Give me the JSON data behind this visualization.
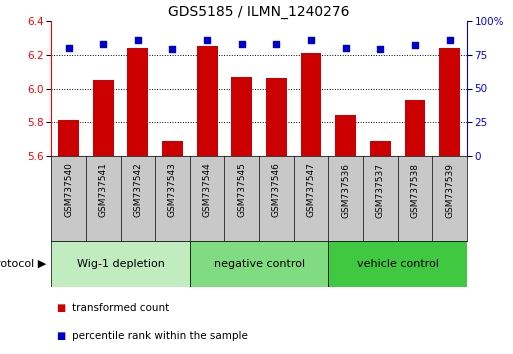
{
  "title": "GDS5185 / ILMN_1240276",
  "samples": [
    "GSM737540",
    "GSM737541",
    "GSM737542",
    "GSM737543",
    "GSM737544",
    "GSM737545",
    "GSM737546",
    "GSM737547",
    "GSM737536",
    "GSM737537",
    "GSM737538",
    "GSM737539"
  ],
  "red_values": [
    5.81,
    6.05,
    6.24,
    5.69,
    6.25,
    6.07,
    6.06,
    6.21,
    5.84,
    5.69,
    5.93,
    6.24
  ],
  "blue_values": [
    80,
    83,
    86,
    79,
    86,
    83,
    83,
    86,
    80,
    79,
    82,
    86
  ],
  "ylim_left": [
    5.6,
    6.4
  ],
  "ylim_right": [
    0,
    100
  ],
  "yticks_left": [
    5.6,
    5.8,
    6.0,
    6.2,
    6.4
  ],
  "yticks_right": [
    0,
    25,
    50,
    75,
    100
  ],
  "ytick_labels_right": [
    "0",
    "25",
    "50",
    "75",
    "100%"
  ],
  "gridlines": [
    5.8,
    6.0,
    6.2
  ],
  "groups": [
    {
      "label": "Wig-1 depletion",
      "start": 0,
      "end": 4,
      "color": "#c0ecc0"
    },
    {
      "label": "negative control",
      "start": 4,
      "end": 8,
      "color": "#80dc80"
    },
    {
      "label": "vehicle control",
      "start": 8,
      "end": 12,
      "color": "#40c840"
    }
  ],
  "bar_color": "#cc0000",
  "dot_color": "#0000cc",
  "protocol_label": "protocol",
  "legend_red": "transformed count",
  "legend_blue": "percentile rank within the sample",
  "bg_color": "#ffffff",
  "label_bg": "#c8c8c8",
  "title_fontsize": 10,
  "tick_fontsize": 7.5,
  "label_fontsize": 6.5,
  "group_fontsize": 8,
  "legend_fontsize": 7.5
}
